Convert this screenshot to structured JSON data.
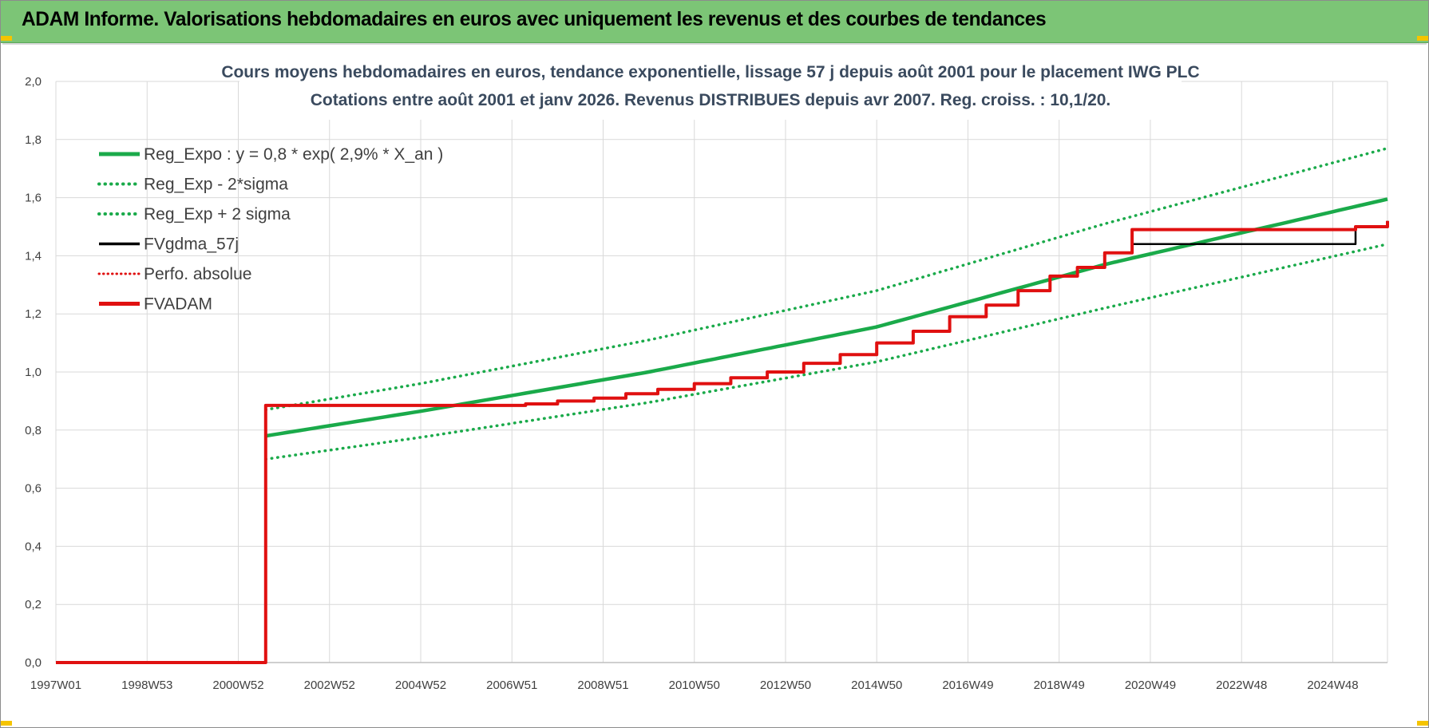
{
  "header": {
    "title": "ADAM Informe. Valorisations hebdomadaires en euros avec uniquement les revenus et des courbes de tendances"
  },
  "colors": {
    "header_bg": "#7cc576",
    "trend": "#1aaa4a",
    "fv": "#e01010",
    "gdma": "#000000",
    "perfo": "#e01010",
    "grid": "#d9d9d9"
  },
  "chart_data": {
    "type": "line",
    "title_line1": "Cours moyens hebdomadaires en euros, tendance exponentielle, lissage 57 j depuis août 2001 pour le placement IWG PLC",
    "title_line2": "Cotations entre août 2001 et janv 2026. Revenus DISTRIBUES depuis avr 2007. Reg. croiss. : 10,1/20.",
    "xlim": [
      1997.0,
      2026.2
    ],
    "ylim": [
      0,
      2.0
    ],
    "y_ticks": [
      "0,0",
      "0,2",
      "0,4",
      "0,6",
      "0,8",
      "1,0",
      "1,2",
      "1,4",
      "1,6",
      "1,8",
      "2,0"
    ],
    "y_tick_values": [
      0,
      0.2,
      0.4,
      0.6,
      0.8,
      1.0,
      1.2,
      1.4,
      1.6,
      1.8,
      2.0
    ],
    "x_ticks": [
      "1997W01",
      "1998W53",
      "2000W52",
      "2002W52",
      "2004W52",
      "2006W51",
      "2008W51",
      "2010W50",
      "2012W50",
      "2014W50",
      "2016W49",
      "2018W49",
      "2020W49",
      "2022W48",
      "2024W48"
    ],
    "x_tick_values": [
      1997.0,
      1999.0,
      2001.0,
      2003.0,
      2005.0,
      2007.0,
      2009.0,
      2011.0,
      2013.0,
      2015.0,
      2017.0,
      2019.0,
      2021.0,
      2023.0,
      2025.0
    ],
    "grid": true,
    "legend_position": "top-left",
    "series": [
      {
        "name": "Reg_Expo : y = 0,8 * exp( 2,9% *  X_an )",
        "style": "solid",
        "color": "#1aaa4a",
        "x": [
          2001.6,
          2005,
          2010,
          2015,
          2020,
          2026.2
        ],
        "y": [
          0.78,
          0.865,
          1.0,
          1.155,
          1.37,
          1.595
        ]
      },
      {
        "name": "Reg_Exp - 2*sigma",
        "style": "dotted",
        "color": "#1aaa4a",
        "x": [
          2001.6,
          2005,
          2010,
          2015,
          2020,
          2026.2
        ],
        "y": [
          0.7,
          0.775,
          0.895,
          1.035,
          1.22,
          1.44
        ]
      },
      {
        "name": "Reg_Exp + 2 sigma",
        "style": "dotted",
        "color": "#1aaa4a",
        "x": [
          2001.6,
          2005,
          2010,
          2015,
          2020,
          2026.2
        ],
        "y": [
          0.87,
          0.96,
          1.11,
          1.28,
          1.51,
          1.77
        ]
      },
      {
        "name": "FVgdma_57j",
        "style": "solid",
        "color": "#000000",
        "x": [
          2001.6,
          2007.3,
          2008.0,
          2008.8,
          2009.5,
          2010.2,
          2011.0,
          2011.8,
          2012.6,
          2013.4,
          2014.2,
          2015.0,
          2015.8,
          2016.6,
          2017.4,
          2018.1,
          2018.8,
          2019.4,
          2020.0,
          2020.6,
          2025.5,
          2026.2
        ],
        "y": [
          0.885,
          0.89,
          0.9,
          0.91,
          0.925,
          0.94,
          0.96,
          0.98,
          1.0,
          1.03,
          1.06,
          1.1,
          1.14,
          1.19,
          1.23,
          1.28,
          1.33,
          1.36,
          1.41,
          1.44,
          1.5,
          1.52
        ]
      },
      {
        "name": "Perfo. absolue",
        "style": "dotted",
        "color": "#e01010",
        "x": [
          2001.6,
          2002.0
        ],
        "y": [
          0.885,
          0.885
        ]
      },
      {
        "name": "FVADAM",
        "style": "solid",
        "color": "#e01010",
        "x": [
          1997.0,
          2001.55,
          2001.6,
          2007.3,
          2008.0,
          2008.8,
          2009.5,
          2010.2,
          2011.0,
          2011.8,
          2012.6,
          2013.4,
          2014.2,
          2015.0,
          2015.8,
          2016.6,
          2017.4,
          2018.1,
          2018.8,
          2019.4,
          2020.0,
          2020.6,
          2025.5,
          2026.2
        ],
        "y": [
          0,
          0,
          0.885,
          0.89,
          0.9,
          0.91,
          0.925,
          0.94,
          0.96,
          0.98,
          1.0,
          1.03,
          1.06,
          1.1,
          1.14,
          1.19,
          1.23,
          1.28,
          1.33,
          1.36,
          1.41,
          1.49,
          1.5,
          1.52
        ]
      }
    ]
  }
}
